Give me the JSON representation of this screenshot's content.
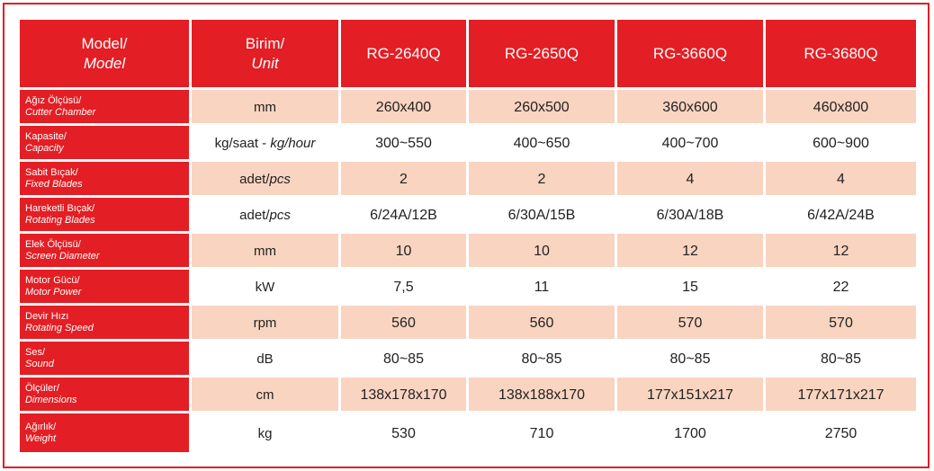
{
  "table": {
    "header": {
      "label": [
        "Model/",
        "Model"
      ],
      "unit": [
        "Birim/",
        "Unit"
      ],
      "models": [
        "RG-2640Q",
        "RG-2650Q",
        "RG-3660Q",
        "RG-3680Q"
      ]
    },
    "rows": [
      {
        "label": [
          "Ağız Ölçüsü/",
          "Cutter Chamber"
        ],
        "unit": [
          "mm"
        ],
        "values": [
          "260x400",
          "260x500",
          "360x600",
          "460x800"
        ]
      },
      {
        "label": [
          "Kapasite/",
          "Capacity"
        ],
        "unit": [
          "kg/saat - ",
          "kg/hour"
        ],
        "values": [
          "300~550",
          "400~650",
          "400~700",
          "600~900"
        ]
      },
      {
        "label": [
          "Sabit Bıçak/",
          "Fixed Blades"
        ],
        "unit": [
          "adet/",
          "pcs"
        ],
        "values": [
          "2",
          "2",
          "4",
          "4"
        ]
      },
      {
        "label": [
          "Hareketli Bıçak/",
          "Rotating Blades"
        ],
        "unit": [
          "adet/",
          "pcs"
        ],
        "values": [
          "6/24A/12B",
          "6/30A/15B",
          "6/30A/18B",
          "6/42A/24B"
        ]
      },
      {
        "label": [
          "Elek Ölçüsü/",
          "Screen Diameter"
        ],
        "unit": [
          "mm"
        ],
        "values": [
          "10",
          "10",
          "12",
          "12"
        ]
      },
      {
        "label": [
          "Motor Gücü/",
          "Motor Power"
        ],
        "unit": [
          "kW"
        ],
        "values": [
          "7,5",
          "11",
          "15",
          "22"
        ]
      },
      {
        "label": [
          "Devir Hızı",
          "Rotating Speed"
        ],
        "unit": [
          "rpm"
        ],
        "values": [
          "560",
          "560",
          "570",
          "570"
        ]
      },
      {
        "label": [
          "Ses/",
          "Sound"
        ],
        "unit": [
          "dB"
        ],
        "values": [
          "80~85",
          "80~85",
          "80~85",
          "80~85"
        ]
      },
      {
        "label": [
          "Ölçüler/",
          "Dimensions"
        ],
        "unit": [
          "cm"
        ],
        "values": [
          "138x178x170",
          "138x188x170",
          "177x151x217",
          "177x171x217"
        ]
      },
      {
        "label": [
          "Ağırlık/",
          "Weight"
        ],
        "unit": [
          "kg"
        ],
        "values": [
          "530",
          "710",
          "1700",
          "2750"
        ]
      }
    ]
  }
}
